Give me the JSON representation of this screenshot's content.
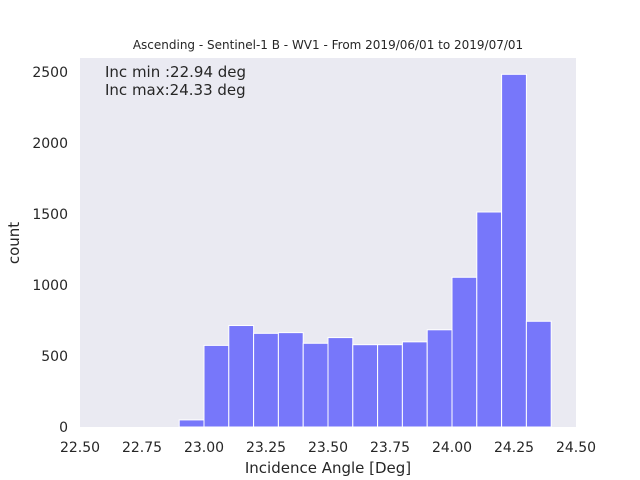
{
  "chart_data": {
    "type": "bar",
    "title": "Ascending - Sentinel-1 B - WV1 - From 2019/06/01 to 2019/07/01",
    "xlabel": "Incidence Angle [Deg]",
    "ylabel": "count",
    "xlim": [
      22.5,
      24.5
    ],
    "ylim": [
      0,
      2600
    ],
    "xticks": [
      "22.50",
      "22.75",
      "23.00",
      "23.25",
      "23.50",
      "23.75",
      "24.00",
      "24.25",
      "24.50"
    ],
    "yticks": [
      "0",
      "500",
      "1000",
      "1500",
      "2000",
      "2500"
    ],
    "grid": false,
    "bar_color": "#7777fa",
    "plot_background": "#eaeaf2",
    "annotations": [
      "Inc min :22.94 deg",
      "Inc max:24.33 deg"
    ],
    "bins": [
      {
        "x0": 22.9,
        "x1": 23.0,
        "value": 50
      },
      {
        "x0": 23.0,
        "x1": 23.1,
        "value": 575
      },
      {
        "x0": 23.1,
        "x1": 23.2,
        "value": 715
      },
      {
        "x0": 23.2,
        "x1": 23.3,
        "value": 660
      },
      {
        "x0": 23.3,
        "x1": 23.4,
        "value": 665
      },
      {
        "x0": 23.4,
        "x1": 23.5,
        "value": 590
      },
      {
        "x0": 23.5,
        "x1": 23.6,
        "value": 630
      },
      {
        "x0": 23.6,
        "x1": 23.7,
        "value": 580
      },
      {
        "x0": 23.7,
        "x1": 23.8,
        "value": 580
      },
      {
        "x0": 23.8,
        "x1": 23.9,
        "value": 600
      },
      {
        "x0": 23.9,
        "x1": 24.0,
        "value": 685
      },
      {
        "x0": 24.0,
        "x1": 24.1,
        "value": 1055
      },
      {
        "x0": 24.1,
        "x1": 24.2,
        "value": 1515
      },
      {
        "x0": 24.2,
        "x1": 24.3,
        "value": 2485
      },
      {
        "x0": 24.3,
        "x1": 24.4,
        "value": 745
      }
    ]
  }
}
